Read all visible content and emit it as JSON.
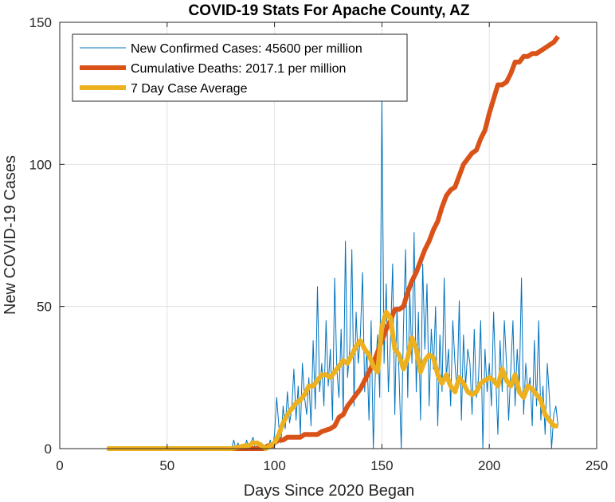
{
  "chart_data": {
    "type": "line",
    "title": "COVID-19 Stats For Apache County, AZ",
    "xlabel": "Days Since 2020 Began",
    "ylabel": "New COVID-19 Cases",
    "xlim": [
      0,
      250
    ],
    "ylim": [
      0,
      150
    ],
    "xticks": [
      0,
      50,
      100,
      150,
      200,
      250
    ],
    "yticks": [
      0,
      50,
      100,
      150
    ],
    "grid": true,
    "legend_position": "top-left",
    "series": [
      {
        "name": "New Confirmed Cases: 45600 per million",
        "color": "#0072BD",
        "style": "thin",
        "x": [
          22,
          30,
          40,
          50,
          60,
          70,
          75,
          80,
          81,
          82,
          83,
          84,
          85,
          86,
          87,
          88,
          89,
          90,
          91,
          92,
          93,
          94,
          95,
          96,
          97,
          98,
          99,
          100,
          101,
          102,
          103,
          104,
          105,
          106,
          107,
          108,
          109,
          110,
          111,
          112,
          113,
          114,
          115,
          116,
          117,
          118,
          119,
          120,
          121,
          122,
          123,
          124,
          125,
          126,
          127,
          128,
          129,
          130,
          131,
          132,
          133,
          134,
          135,
          136,
          137,
          138,
          139,
          140,
          141,
          142,
          143,
          144,
          145,
          146,
          147,
          148,
          149,
          150,
          151,
          152,
          153,
          154,
          155,
          156,
          157,
          158,
          159,
          160,
          161,
          162,
          163,
          164,
          165,
          166,
          167,
          168,
          169,
          170,
          171,
          172,
          173,
          174,
          175,
          176,
          177,
          178,
          179,
          180,
          181,
          182,
          183,
          184,
          185,
          186,
          187,
          188,
          189,
          190,
          191,
          192,
          193,
          194,
          195,
          196,
          197,
          198,
          199,
          200,
          201,
          202,
          203,
          204,
          205,
          206,
          207,
          208,
          209,
          210,
          211,
          212,
          213,
          214,
          215,
          216,
          217,
          218,
          219,
          220,
          221,
          222,
          223,
          224,
          225,
          226,
          227,
          228,
          229,
          230,
          231,
          232
        ],
        "y": [
          0,
          0,
          0,
          0,
          0,
          0,
          0,
          0,
          3,
          0,
          2,
          0,
          1,
          0,
          3,
          0,
          2,
          4,
          0,
          1,
          0,
          2,
          0,
          1,
          0,
          3,
          0,
          5,
          18,
          8,
          2,
          15,
          7,
          20,
          9,
          14,
          28,
          10,
          22,
          5,
          30,
          18,
          12,
          25,
          8,
          38,
          14,
          57,
          20,
          30,
          15,
          45,
          22,
          35,
          10,
          60,
          28,
          18,
          42,
          12,
          73,
          25,
          35,
          70,
          15,
          48,
          30,
          40,
          62,
          20,
          35,
          10,
          45,
          0,
          28,
          40,
          18,
          123,
          30,
          58,
          20,
          38,
          65,
          12,
          50,
          25,
          0,
          42,
          70,
          18,
          55,
          30,
          76,
          20,
          48,
          10,
          65,
          35,
          58,
          15,
          42,
          28,
          50,
          8,
          40,
          20,
          60,
          25,
          35,
          15,
          45,
          30,
          20,
          52,
          10,
          40,
          22,
          35,
          30,
          12,
          42,
          18,
          25,
          45,
          0,
          35,
          20,
          30,
          15,
          48,
          25,
          5,
          38,
          20,
          45,
          30,
          10,
          28,
          45,
          15,
          35,
          22,
          60,
          12,
          30,
          20,
          25,
          8,
          38,
          15,
          45,
          10,
          22,
          5,
          30,
          18,
          0,
          12,
          15,
          8
        ]
      },
      {
        "name": "Cumulative Deaths: 2017.1 per million",
        "color": "#D95319",
        "style": "thick",
        "x": [
          22,
          95,
          97,
          99,
          100,
          102,
          104,
          106,
          108,
          112,
          114,
          120,
          122,
          126,
          128,
          130,
          132,
          134,
          136,
          138,
          140,
          142,
          144,
          146,
          148,
          150,
          152,
          154,
          156,
          158,
          160,
          162,
          164,
          166,
          168,
          170,
          172,
          174,
          176,
          178,
          180,
          182,
          184,
          186,
          188,
          190,
          192,
          194,
          196,
          198,
          200,
          202,
          204,
          206,
          208,
          210,
          212,
          214,
          216,
          218,
          220,
          222,
          224,
          226,
          228,
          230,
          232
        ],
        "y": [
          0,
          0,
          1,
          1,
          2,
          3,
          3,
          4,
          4,
          4,
          5,
          5,
          6,
          7,
          8,
          11,
          12,
          15,
          17,
          19,
          21,
          24,
          27,
          30,
          34,
          38,
          42,
          45,
          49,
          49,
          50,
          55,
          59,
          62,
          66,
          70,
          73,
          77,
          80,
          85,
          89,
          91,
          92,
          96,
          100,
          102,
          104,
          105,
          109,
          112,
          118,
          123,
          128,
          128,
          129,
          132,
          136,
          136,
          138,
          138,
          139,
          139,
          140,
          141,
          142,
          143,
          145
        ]
      },
      {
        "name": "7 Day Case Average",
        "color": "#EDB120",
        "style": "thick",
        "x": [
          22,
          40,
          60,
          80,
          86,
          88,
          90,
          92,
          94,
          96,
          98,
          100,
          102,
          104,
          106,
          108,
          110,
          112,
          114,
          116,
          118,
          120,
          122,
          124,
          126,
          128,
          130,
          132,
          134,
          136,
          138,
          140,
          142,
          144,
          146,
          148,
          150,
          152,
          154,
          156,
          158,
          160,
          162,
          164,
          166,
          168,
          170,
          172,
          174,
          176,
          178,
          180,
          182,
          184,
          186,
          188,
          190,
          192,
          194,
          196,
          198,
          200,
          202,
          204,
          206,
          208,
          210,
          212,
          214,
          216,
          218,
          220,
          222,
          224,
          226,
          228,
          230,
          232
        ],
        "y": [
          0,
          0,
          0,
          0,
          1,
          1,
          2,
          2,
          1,
          0,
          1,
          2,
          5,
          9,
          12,
          14,
          16,
          17,
          19,
          22,
          22,
          24,
          26,
          26,
          25,
          27,
          29,
          31,
          30,
          33,
          36,
          38,
          35,
          33,
          29,
          27,
          43,
          48,
          46,
          35,
          33,
          28,
          32,
          39,
          35,
          27,
          31,
          33,
          32,
          26,
          23,
          26,
          22,
          20,
          25,
          23,
          20,
          19,
          20,
          23,
          24,
          25,
          24,
          22,
          28,
          24,
          22,
          26,
          20,
          18,
          22,
          21,
          19,
          17,
          12,
          10,
          8,
          8
        ]
      }
    ]
  }
}
